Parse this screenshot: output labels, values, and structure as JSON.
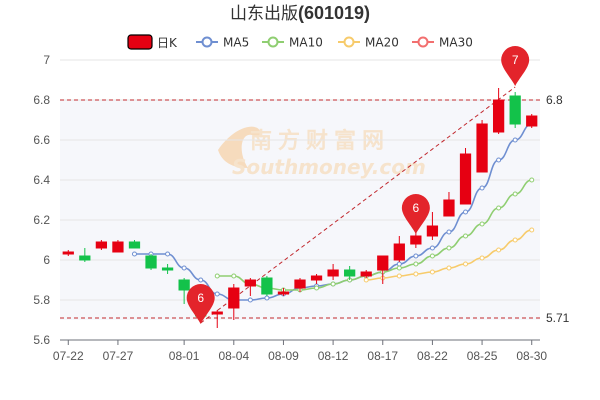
{
  "title": "山东出版(601019)",
  "legend": [
    {
      "name": "日K",
      "kind": "candle",
      "color": "#e60012"
    },
    {
      "name": "MA5",
      "kind": "line",
      "color": "#6f8fd1"
    },
    {
      "name": "MA10",
      "kind": "line",
      "color": "#8fce71"
    },
    {
      "name": "MA20",
      "kind": "line",
      "color": "#f7cb6b"
    },
    {
      "name": "MA30",
      "kind": "line",
      "color": "#f26f6f"
    }
  ],
  "watermark": {
    "cn": "南方财富网",
    "en": "Southmoney.com"
  },
  "colors": {
    "up": "#e60012",
    "down": "#13c24a",
    "grid": "#e6e6e6",
    "ref": "#c1282e"
  },
  "chart_data": {
    "type": "candlestick",
    "ylim": [
      5.6,
      7.0
    ],
    "yticks": [
      "5.6",
      "5.8",
      "6",
      "6.2",
      "6.4",
      "6.6",
      "6.8",
      "7"
    ],
    "xtick_labels": [
      "07-22",
      "07-27",
      "08-01",
      "08-04",
      "08-09",
      "08-12",
      "08-17",
      "08-22",
      "08-25",
      "08-30"
    ],
    "xtick_index": [
      0,
      3,
      7,
      10,
      13,
      16,
      19,
      22,
      25,
      28
    ],
    "ohlc": [
      [
        6.03,
        6.04,
        6.02,
        6.05
      ],
      [
        6.02,
        6.0,
        5.99,
        6.06
      ],
      [
        6.06,
        6.09,
        6.05,
        6.1
      ],
      [
        6.04,
        6.09,
        6.04,
        6.1
      ],
      [
        6.09,
        6.06,
        6.06,
        6.1
      ],
      [
        6.02,
        5.96,
        5.95,
        6.03
      ],
      [
        5.96,
        5.95,
        5.93,
        5.98
      ],
      [
        5.9,
        5.85,
        5.78,
        5.91
      ],
      [
        5.82,
        5.72,
        5.7,
        5.85
      ],
      [
        5.73,
        5.74,
        5.66,
        5.75
      ],
      [
        5.76,
        5.86,
        5.7,
        5.88
      ],
      [
        5.87,
        5.9,
        5.82,
        5.91
      ],
      [
        5.91,
        5.83,
        5.82,
        5.92
      ],
      [
        5.83,
        5.84,
        5.82,
        5.86
      ],
      [
        5.86,
        5.9,
        5.84,
        5.91
      ],
      [
        5.9,
        5.92,
        5.88,
        5.93
      ],
      [
        5.92,
        5.95,
        5.9,
        5.98
      ],
      [
        5.95,
        5.92,
        5.9,
        5.97
      ],
      [
        5.92,
        5.94,
        5.91,
        5.95
      ],
      [
        5.95,
        6.02,
        5.88,
        6.02
      ],
      [
        6.0,
        6.08,
        5.99,
        6.12
      ],
      [
        6.08,
        6.12,
        6.06,
        6.14
      ],
      [
        6.12,
        6.17,
        6.1,
        6.24
      ],
      [
        6.22,
        6.3,
        6.22,
        6.34
      ],
      [
        6.28,
        6.53,
        6.28,
        6.56
      ],
      [
        6.44,
        6.68,
        6.44,
        6.7
      ],
      [
        6.64,
        6.8,
        6.63,
        6.86
      ],
      [
        6.82,
        6.68,
        6.66,
        6.84
      ],
      [
        6.67,
        6.72,
        6.66,
        6.73
      ]
    ],
    "ma5": [
      null,
      null,
      null,
      null,
      6.03,
      6.03,
      6.03,
      5.96,
      5.9,
      5.83,
      5.8,
      5.8,
      5.81,
      5.83,
      5.86,
      5.87,
      5.88,
      5.9,
      5.92,
      5.94,
      5.98,
      6.02,
      6.06,
      6.14,
      6.24,
      6.36,
      6.5,
      6.6,
      6.68
    ],
    "ma10": [
      null,
      null,
      null,
      null,
      null,
      null,
      null,
      null,
      null,
      5.92,
      5.92,
      5.88,
      5.86,
      5.85,
      5.85,
      5.86,
      5.88,
      5.9,
      5.92,
      5.94,
      5.96,
      5.98,
      6.02,
      6.06,
      6.12,
      6.18,
      6.26,
      6.33,
      6.4
    ],
    "ma20": [
      null,
      null,
      null,
      null,
      null,
      null,
      null,
      null,
      null,
      null,
      null,
      null,
      null,
      null,
      null,
      null,
      null,
      null,
      5.9,
      5.91,
      5.92,
      5.93,
      5.94,
      5.96,
      5.98,
      6.01,
      6.05,
      6.1,
      6.15
    ],
    "ma30": [],
    "ref_high": {
      "label": "6.8",
      "value": 6.8
    },
    "ref_low": {
      "label": "5.71",
      "value": 5.71
    },
    "pins": [
      {
        "label": "6",
        "index": 8,
        "value": 5.68
      },
      {
        "label": "6",
        "index": 21,
        "value": 6.13
      },
      {
        "label": "7",
        "index": 27,
        "value": 6.87
      }
    ]
  }
}
